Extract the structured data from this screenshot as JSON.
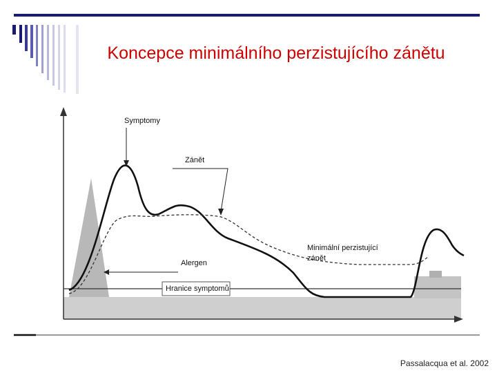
{
  "title": "Koncepce minimálního perzistujícího zánětu",
  "diagram": {
    "labels": {
      "symptoms": "Symptomy",
      "inflammation": "Zánět",
      "allergen": "Alergen",
      "threshold": "Hranice symptomů",
      "minimal": "Minimální perzistující zánět"
    }
  },
  "citation": "Passalacqua et al. 2002"
}
